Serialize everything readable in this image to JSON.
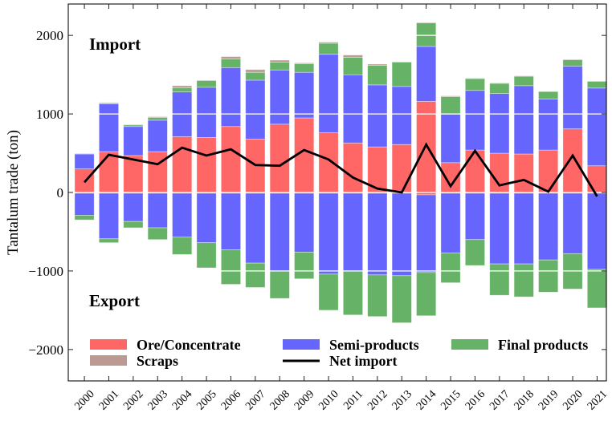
{
  "chart_data": {
    "type": "bar",
    "stacked": true,
    "ylabel": "Tantalum trade (ton)",
    "xlabel": "",
    "ylim": [
      -2400,
      2400
    ],
    "yticks": [
      -2000,
      -1000,
      0,
      1000,
      2000
    ],
    "ytick_labels": [
      "−2000",
      "−1000",
      "0",
      "1000",
      "2000"
    ],
    "annotations": {
      "import": "Import",
      "export": "Export"
    },
    "legend_position": "bottom",
    "categories": [
      "2000",
      "2001",
      "2002",
      "2003",
      "2004",
      "2005",
      "2006",
      "2007",
      "2008",
      "2009",
      "2010",
      "2011",
      "2012",
      "2013",
      "2014",
      "2015",
      "2016",
      "2017",
      "2018",
      "2019",
      "2020",
      "2021"
    ],
    "series": [
      {
        "name": "Ore/Concentrate",
        "color": "#ff6666",
        "import": [
          300,
          520,
          470,
          520,
          710,
          700,
          840,
          680,
          870,
          950,
          760,
          630,
          580,
          610,
          1160,
          380,
          540,
          500,
          490,
          540,
          810,
          340
        ],
        "export": [
          -10,
          -10,
          -10,
          -10,
          -10,
          -10,
          -10,
          -10,
          -10,
          -10,
          -10,
          -10,
          -10,
          -10,
          -30,
          -10,
          -10,
          -10,
          -10,
          -10,
          -10,
          -10
        ]
      },
      {
        "name": "Semi-products",
        "color": "#6666ff",
        "import": [
          190,
          610,
          370,
          400,
          570,
          640,
          750,
          750,
          690,
          580,
          1000,
          870,
          790,
          740,
          700,
          620,
          760,
          760,
          870,
          650,
          800,
          990
        ],
        "export": [
          -280,
          -580,
          -360,
          -440,
          -560,
          -630,
          -720,
          -890,
          -990,
          -750,
          -1030,
          -990,
          -1040,
          -1050,
          -990,
          -760,
          -590,
          -900,
          -900,
          -850,
          -770,
          -970
        ]
      },
      {
        "name": "Final products",
        "color": "#66b266",
        "import": [
          5,
          10,
          20,
          35,
          55,
          85,
          110,
          100,
          100,
          110,
          140,
          220,
          250,
          310,
          300,
          220,
          150,
          130,
          120,
          95,
          80,
          85
        ],
        "export": [
          -60,
          -50,
          -80,
          -150,
          -220,
          -320,
          -440,
          -310,
          -350,
          -340,
          -460,
          -560,
          -530,
          -600,
          -550,
          -380,
          -330,
          -400,
          -420,
          -410,
          -450,
          -490
        ]
      },
      {
        "name": "Scraps",
        "color": "#bc9a94",
        "import": [
          0,
          5,
          5,
          10,
          25,
          5,
          30,
          35,
          25,
          10,
          15,
          30,
          15,
          5,
          5,
          10,
          5,
          5,
          5,
          0,
          5,
          0
        ],
        "export": [
          0,
          0,
          0,
          0,
          0,
          0,
          0,
          0,
          0,
          0,
          0,
          0,
          0,
          0,
          0,
          0,
          0,
          0,
          0,
          0,
          0,
          0
        ]
      },
      {
        "name": "Net import",
        "color": "#000000",
        "type": "line",
        "values": [
          130,
          480,
          420,
          360,
          570,
          470,
          550,
          350,
          340,
          540,
          420,
          190,
          50,
          0,
          610,
          80,
          530,
          90,
          160,
          10,
          470,
          -50
        ]
      }
    ]
  }
}
